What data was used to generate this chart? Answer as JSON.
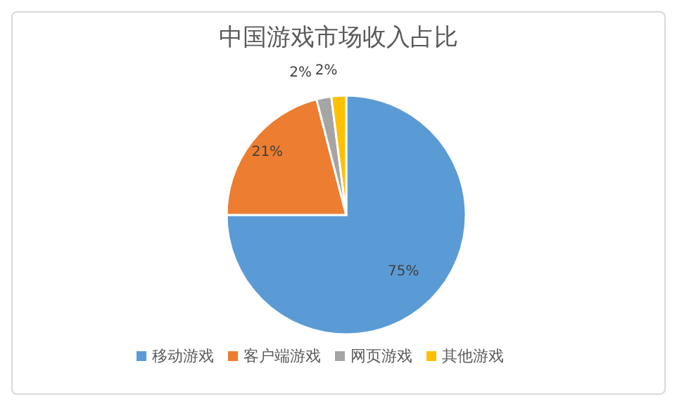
{
  "chart_data": {
    "type": "pie",
    "title": "中国游戏市场收入占比",
    "categories": [
      "移动游戏",
      "客户端游戏",
      "网页游戏",
      "其他游戏"
    ],
    "values": [
      75,
      21,
      2,
      2
    ],
    "colors": [
      "#5b9bd5",
      "#ed7d31",
      "#a5a5a5",
      "#ffc000"
    ],
    "value_labels": [
      "75%",
      "21%",
      "2%",
      "2%"
    ],
    "legend": "bottom"
  }
}
